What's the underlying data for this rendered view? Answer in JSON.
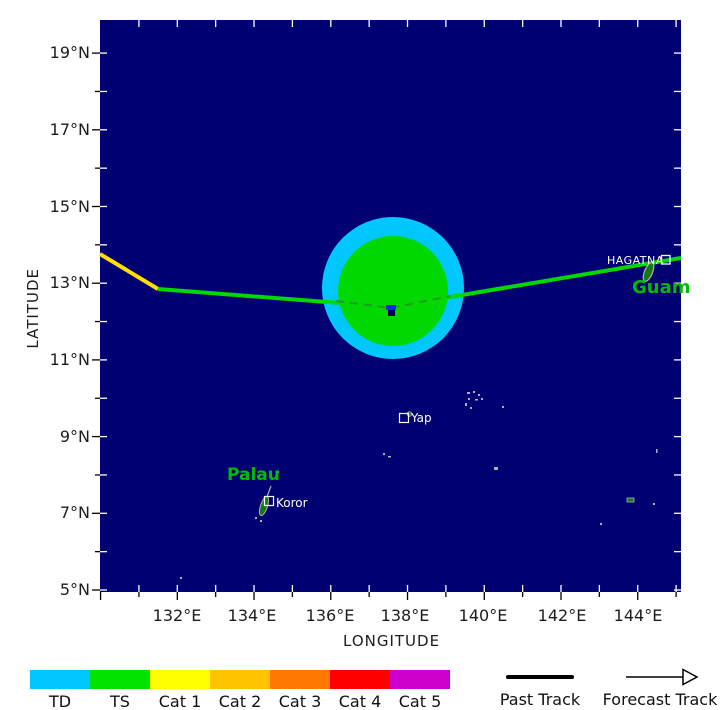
{
  "axes": {
    "x_label": "LONGITUDE",
    "y_label": "LATITUDE",
    "lat_tick_labels": [
      "19°N",
      "17°N",
      "15°N",
      "13°N",
      "11°N",
      "9°N",
      "7°N",
      "5°N"
    ],
    "lon_tick_labels": [
      "132°E",
      "134°E",
      "136°E",
      "138°E",
      "140°E",
      "142°E",
      "144°E"
    ]
  },
  "map": {
    "places": {
      "hagatna": "HAGATNA",
      "guam": "Guam",
      "yap": "Yap",
      "palau": "Palau",
      "koror": "Koror"
    }
  },
  "legend": {
    "categories": [
      {
        "label": "TD",
        "color": "#00c8ff"
      },
      {
        "label": "TS",
        "color": "#00e400"
      },
      {
        "label": "Cat 1",
        "color": "#ffff00"
      },
      {
        "label": "Cat 2",
        "color": "#ffc400"
      },
      {
        "label": "Cat 3",
        "color": "#ff7800"
      },
      {
        "label": "Cat 4",
        "color": "#ff0000"
      },
      {
        "label": "Cat 5",
        "color": "#cc00cc"
      }
    ],
    "past_track_label": "Past Track",
    "forecast_track_label": "Forecast Track"
  },
  "colors": {
    "ocean": "#000073",
    "track_yellow": "#ffe000",
    "track_green": "#00d800",
    "dash_overlay": "#1e9e1e",
    "label_green": "#00bc00",
    "island_green": "#147814",
    "island_gray": "#b0b0b0",
    "marker_blue": "#0030e0",
    "marker_dark": "#000060"
  },
  "chart_data": {
    "type": "map-track",
    "xlabel": "LONGITUDE",
    "ylabel": "LATITUDE",
    "lon_range": [
      130.0,
      145.1
    ],
    "lat_range": [
      4.95,
      19.9
    ],
    "lon_ticks": [
      132,
      134,
      136,
      138,
      140,
      142,
      144
    ],
    "lat_ticks": [
      19,
      17,
      15,
      13,
      11,
      9,
      7,
      5
    ],
    "past_track": [
      {
        "lon": 130.0,
        "lat": 13.8,
        "intensity": "Cat 1"
      },
      {
        "lon": 131.4,
        "lat": 12.9,
        "intensity": "TS"
      },
      {
        "lon": 137.6,
        "lat": 12.3,
        "intensity": "TS"
      }
    ],
    "forecast_track": [
      {
        "lon": 137.6,
        "lat": 12.3
      },
      {
        "lon": 145.1,
        "lat": 13.6
      }
    ],
    "current_position": {
      "lon": 137.6,
      "lat": 12.3
    },
    "wind_circles": [
      {
        "category": "TD",
        "center_lon": 137.6,
        "center_lat": 12.9,
        "radius_deg": 1.85
      },
      {
        "category": "TS",
        "center_lon": 137.6,
        "center_lat": 12.8,
        "radius_deg": 1.45
      }
    ],
    "legend_position": "bottom",
    "grid": false
  }
}
